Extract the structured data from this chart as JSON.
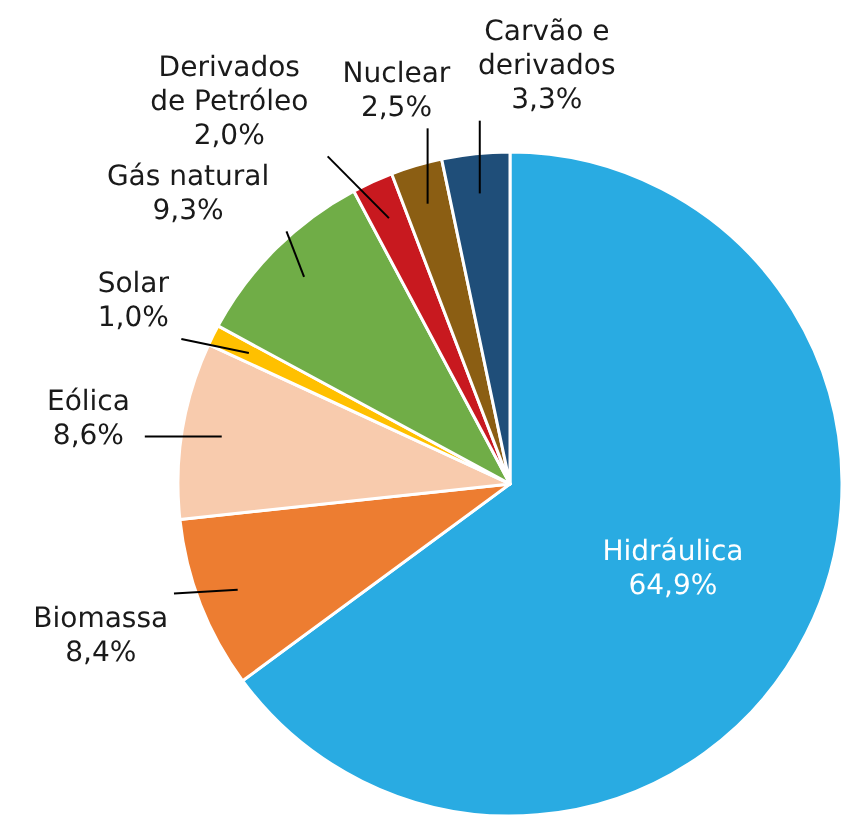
{
  "chart_data": {
    "type": "pie",
    "categories": [
      "Hidráulica",
      "Biomassa",
      "Eólica",
      "Solar",
      "Gás natural",
      "Derivados de Petróleo",
      "Nuclear",
      "Carvão e derivados"
    ],
    "values": [
      64.9,
      8.4,
      8.6,
      1.0,
      9.3,
      2.0,
      2.5,
      3.3
    ],
    "value_labels": [
      "64,9%",
      "8,4%",
      "8,6%",
      "1,0%",
      "9,3%",
      "2,0%",
      "2,5%",
      "3,3%"
    ],
    "colors": [
      "#29abe2",
      "#ed7d31",
      "#f8cbad",
      "#ffc000",
      "#70ad47",
      "#c8191f",
      "#8b5e13",
      "#1f4e79"
    ]
  }
}
